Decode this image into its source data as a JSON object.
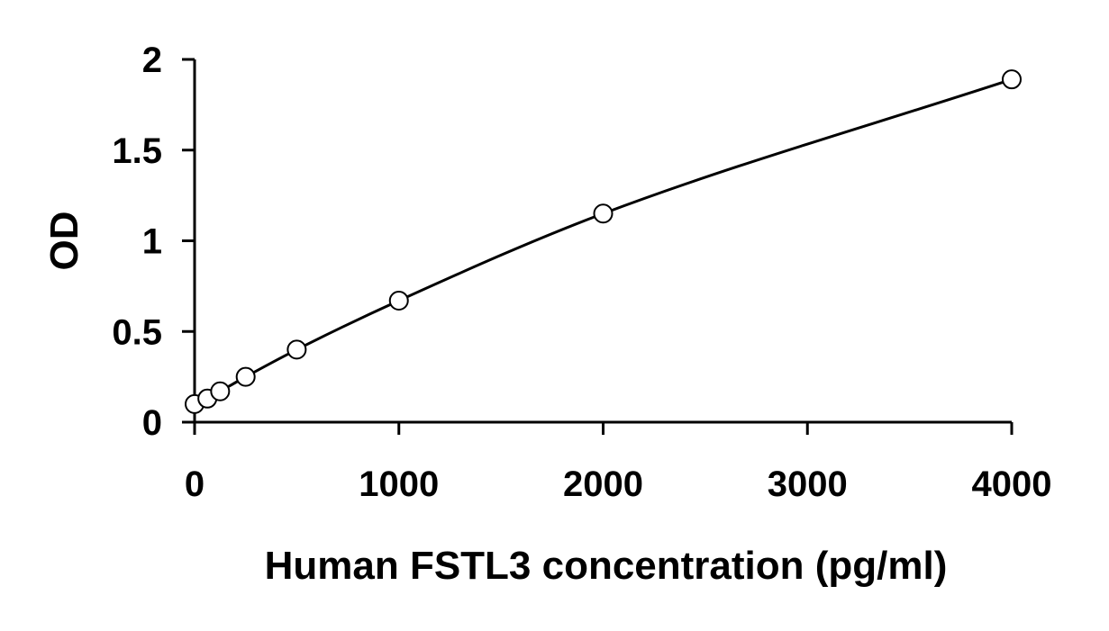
{
  "chart_data": {
    "type": "scatter",
    "title": "",
    "xlabel": "Human FSTL3 concentration (pg/ml)",
    "ylabel": "OD",
    "xlim": [
      0,
      4000
    ],
    "ylim": [
      0,
      2
    ],
    "x_ticks": [
      "0",
      "1000",
      "2000",
      "3000",
      "4000"
    ],
    "y_ticks": [
      "0",
      "0.5",
      "1",
      "1.5",
      "2"
    ],
    "grid": false,
    "legend": "none",
    "series": [
      {
        "marker": "open-circle",
        "line": "smooth-fit",
        "points": [
          {
            "x": 0,
            "y": 0.1
          },
          {
            "x": 62.5,
            "y": 0.13
          },
          {
            "x": 125,
            "y": 0.17
          },
          {
            "x": 250,
            "y": 0.25
          },
          {
            "x": 500,
            "y": 0.4
          },
          {
            "x": 1000,
            "y": 0.67
          },
          {
            "x": 2000,
            "y": 1.15
          },
          {
            "x": 4000,
            "y": 1.89
          }
        ]
      }
    ]
  }
}
